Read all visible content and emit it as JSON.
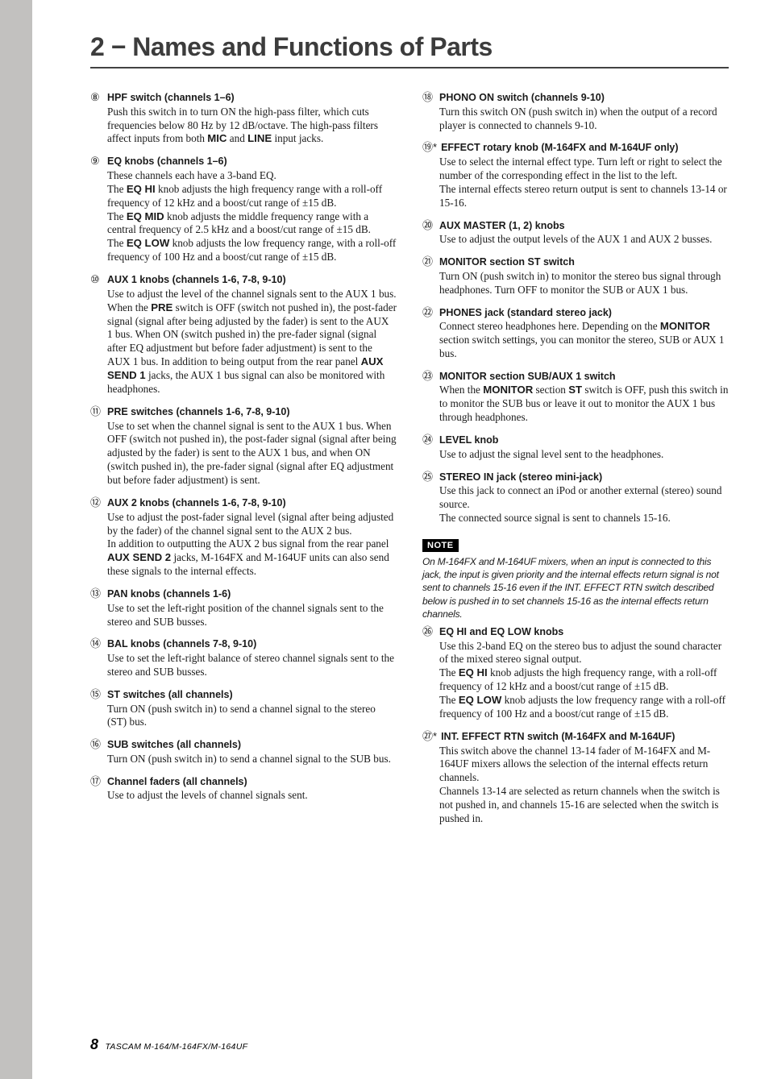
{
  "colors": {
    "page_bg": "#ffffff",
    "outer_bg": "#d7d6d5",
    "sidebar_bg": "#c2c1bf",
    "title_color": "#3c3c3c",
    "rule_color": "#424242",
    "text_color": "#1a1a1a",
    "note_bg": "#000000",
    "note_fg": "#ffffff"
  },
  "typography": {
    "title_font": "Verdana",
    "title_size_pt": 24,
    "body_font": "Times New Roman",
    "body_size_pt": 10,
    "heading_font": "Arial",
    "heading_size_pt": 9.5,
    "note_font": "Verdana Italic"
  },
  "title": "2 − Names and Functions of Parts",
  "left": [
    {
      "num": "⑧",
      "head": "HPF switch (channels 1–6)",
      "body": "Push this switch in to turn ON the high-pass filter, which cuts frequencies below 80 Hz by 12 dB/octave. The high-pass filters affect inputs from both <span class=\"sans\">MIC</span> and <span class=\"sans\">LINE</span> input jacks."
    },
    {
      "num": "⑨",
      "head": "EQ knobs (channels 1–6)",
      "body": "These channels each have a 3-band EQ.<br>The <span class=\"sans\">EQ HI</span> knob adjusts the high frequency range with a roll-off frequency of 12 kHz and a boost/cut range of ±15 dB.<br>The <span class=\"sans\">EQ MID</span> knob adjusts the middle frequency range with a central frequency of 2.5 kHz and a boost/cut range of ±15 dB.<br>The <span class=\"sans\">EQ LOW</span> knob adjusts the low frequency range, with a roll-off frequency of 100 Hz and a boost/cut range of ±15 dB."
    },
    {
      "num": "⑩",
      "head": "AUX 1 knobs (channels 1-6, 7-8, 9-10)",
      "body": "Use to adjust the level of the channel signals sent to the AUX 1 bus.<br>When the <span class=\"sans\">PRE</span> switch is OFF (switch not pushed in), the post-fader signal (signal after being adjusted by the fader) is sent to the AUX 1 bus. When ON (switch pushed in) the pre-fader signal (signal after EQ adjustment but before fader adjustment) is sent to the AUX 1 bus. In addition to being output from the rear panel <span class=\"sans\">AUX SEND 1</span> jacks, the AUX 1 bus signal can also be monitored with headphones."
    },
    {
      "num": "⑪",
      "head": "PRE switches (channels 1-6, 7-8, 9-10)",
      "body": "Use to set when the channel signal is sent to the AUX 1 bus. When OFF (switch not pushed in), the post-fader signal (signal after being adjusted by the fader) is sent to the AUX 1 bus, and when ON (switch pushed in), the pre-fader signal (signal after EQ adjustment but before fader adjustment) is sent."
    },
    {
      "num": "⑫",
      "head": "AUX 2 knobs (channels 1-6, 7-8, 9-10)",
      "body": "Use to adjust the post-fader signal level (signal after being adjusted by the fader) of the channel signal sent to the AUX 2 bus.<br>In addition to outputting the AUX 2 bus signal from the rear panel <span class=\"sans\">AUX SEND 2</span> jacks, M-164FX and M-164UF units can also send these signals to the internal effects."
    },
    {
      "num": "⑬",
      "head": "PAN knobs (channels 1-6)",
      "body": "Use to set the left-right position of the channel signals sent to the stereo and SUB busses."
    },
    {
      "num": "⑭",
      "head": "BAL knobs (channels 7-8, 9-10)",
      "body": "Use to set the left-right balance of stereo channel signals sent to the stereo and SUB busses."
    },
    {
      "num": "⑮",
      "head": "ST switches (all channels)",
      "body": "Turn ON (push switch in) to send a channel signal to the stereo (ST) bus."
    },
    {
      "num": "⑯",
      "head": "SUB switches (all channels)",
      "body": "Turn ON (push switch in) to send a channel signal to the SUB bus."
    },
    {
      "num": "⑰",
      "head": "Channel faders (all channels)",
      "body": "Use to adjust the levels of channel signals sent."
    }
  ],
  "right": [
    {
      "num": "⑱",
      "head": "PHONO ON switch (channels 9-10)",
      "body": "Turn this switch ON (push switch in) when the output of a record player is connected to channels 9-10."
    },
    {
      "num": "⑲*",
      "head": "EFFECT rotary knob (M-164FX and M-164UF only)",
      "body": "Use to select the internal effect type. Turn left or right to select the number of the corresponding effect in the list to the left.<br>The internal effects stereo return output is sent to channels 13-14 or 15-16."
    },
    {
      "num": "⑳",
      "head": "AUX MASTER (1, 2) knobs",
      "body": "Use to adjust the output levels of the AUX 1 and AUX 2 busses."
    },
    {
      "num": "㉑",
      "head": "MONITOR section ST switch",
      "body": "Turn ON (push switch in) to monitor the stereo bus signal through headphones. Turn OFF to monitor the SUB or AUX 1 bus."
    },
    {
      "num": "㉒",
      "head": "PHONES jack (standard stereo jack)",
      "body": "Connect stereo headphones here. Depending on the <span class=\"sans\">MONITOR</span> section switch settings, you can monitor the stereo, SUB or AUX 1 bus."
    },
    {
      "num": "㉓",
      "head": "MONITOR section SUB/AUX 1 switch",
      "body": "When the <span class=\"sans\">MONITOR</span> section <span class=\"sans\">ST</span> switch is OFF, push this switch in to monitor the SUB bus or leave it out to monitor the AUX 1 bus through headphones."
    },
    {
      "num": "㉔",
      "head": "LEVEL knob",
      "body": "Use to adjust the signal level sent to the headphones."
    },
    {
      "num": "㉕",
      "head": "STEREO IN jack (stereo mini-jack)",
      "body": "Use this jack to connect an iPod or another external (stereo) sound source.<br>The connected source signal is sent to channels 15-16."
    }
  ],
  "note_label": "NOTE",
  "note_text": "On M-164FX and M-164UF mixers, when an input is connected to this jack, the input is given priority and the internal effects return signal is not sent to channels 15-16 even if the INT. EFFECT RTN switch described below is pushed in to set channels 15-16 as the internal effects return channels.",
  "right_after_note": [
    {
      "num": "㉖",
      "head": "EQ HI and EQ LOW knobs",
      "body": "Use this 2-band EQ on the stereo bus to adjust the sound character of the mixed stereo signal output.<br>The <span class=\"sans\">EQ HI</span> knob adjusts the high frequency range, with a roll-off frequency of 12 kHz and a boost/cut range of ±15 dB.<br>The <span class=\"sans\">EQ LOW</span> knob adjusts the low frequency range with a roll-off frequency of 100 Hz and a boost/cut range of ±15 dB."
    },
    {
      "num": "㉗*",
      "head": "INT. EFFECT RTN switch (M-164FX and M-164UF)",
      "body": "This switch above the channel 13-14 fader of M-164FX and M-164UF mixers allows the selection of the internal effects return channels.<br>Channels 13-14 are selected as return channels when the switch is not pushed in, and channels 15-16 are selected when the switch is pushed in."
    }
  ],
  "footer": {
    "page": "8",
    "label": "TASCAM  M-164/M-164FX/M-164UF"
  }
}
